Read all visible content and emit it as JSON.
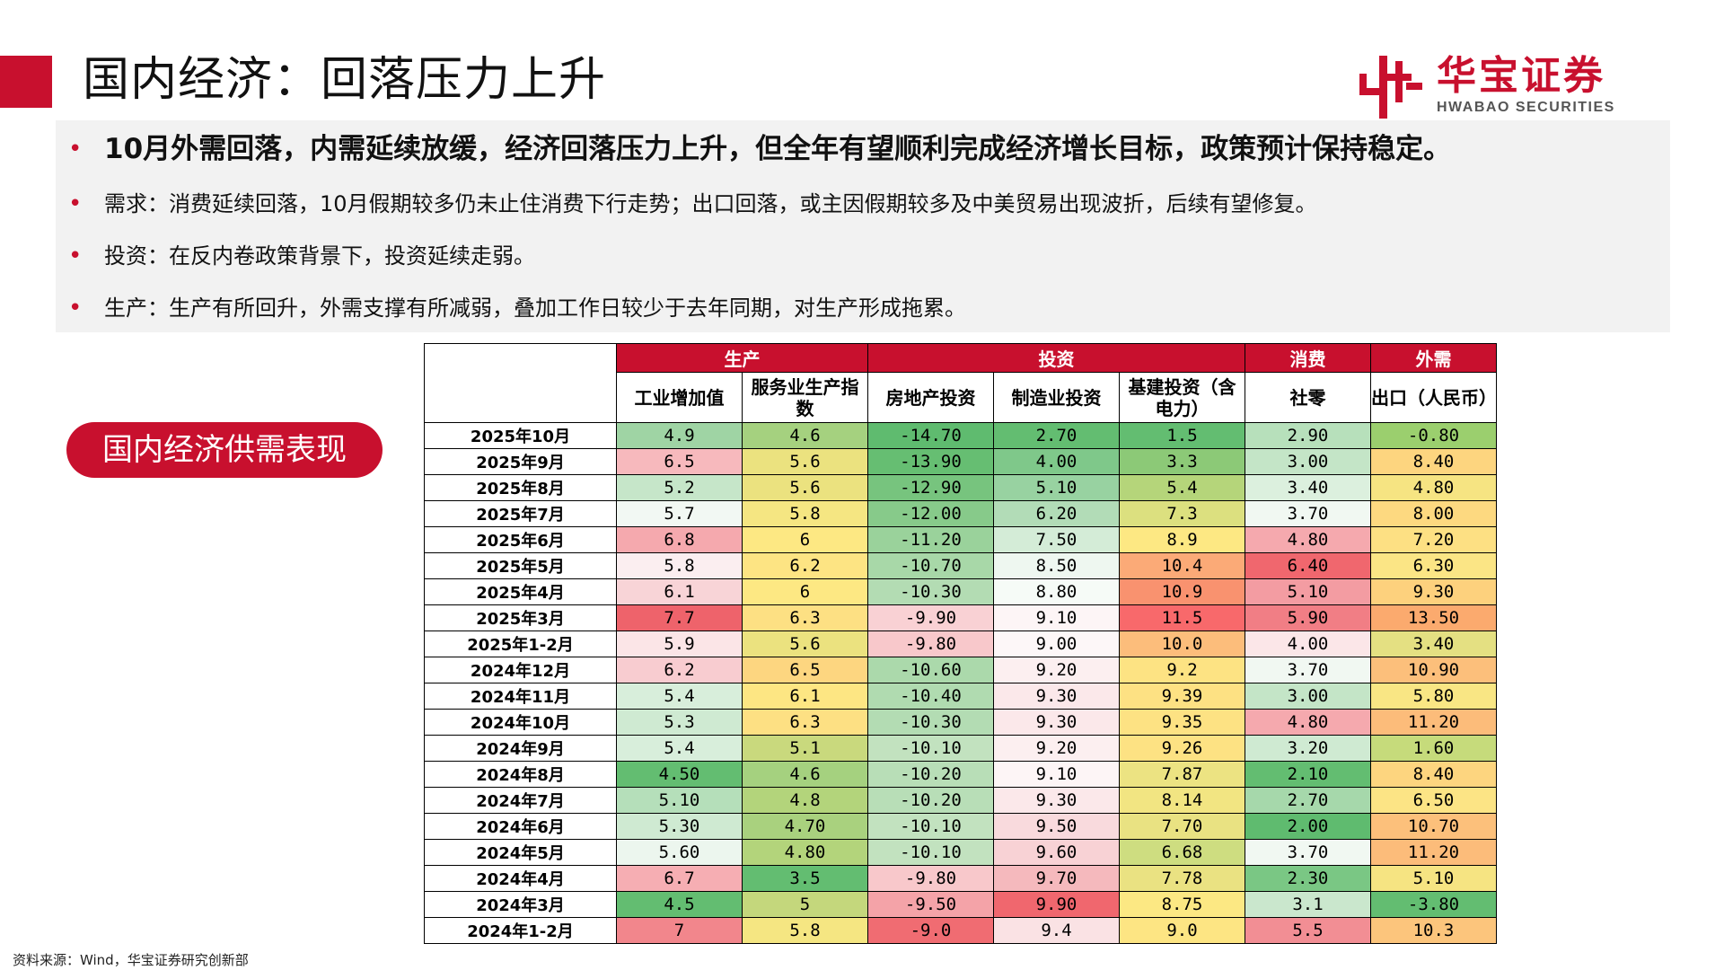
{
  "header": {
    "title": "国内经济：回落压力上升",
    "logo_cn": "华宝证券",
    "logo_en": "HWABAO SECURITIES"
  },
  "summary": {
    "main": "10月外需回落，内需延续放缓，经济回落压力上升，但全年有望顺利完成经济增长目标，政策预计保持稳定。",
    "items": [
      "需求：消费延续回落，10月假期较多仍未止住消费下行走势；出口回落，或主因假期较多及中美贸易出现波折，后续有望修复。",
      "投资：在反内卷政策背景下，投资延续走弱。",
      "生产：生产有所回升，外需支撑有所减弱，叠加工作日较少于去年同期，对生产形成拖累。"
    ]
  },
  "section_label": "国内经济供需表现",
  "table": {
    "groups": [
      {
        "label": "生产",
        "span": 2
      },
      {
        "label": "投资",
        "span": 3
      },
      {
        "label": "消费",
        "span": 1
      },
      {
        "label": "外需",
        "span": 1
      }
    ],
    "columns": [
      "工业增加值",
      "服务业生产指数",
      "房地产投资",
      "制造业投资",
      "基建投资（含电力）",
      "社零",
      "出口（人民币）"
    ],
    "rows": [
      {
        "date": "2025年10月",
        "cells": [
          {
            "v": "4.9",
            "c": "#9fd4a4"
          },
          {
            "v": "4.6",
            "c": "#a5d17f"
          },
          {
            "v": "-14.70",
            "c": "#5fbb6f"
          },
          {
            "v": "2.70",
            "c": "#63bd71"
          },
          {
            "v": "1.5",
            "c": "#63bd71"
          },
          {
            "v": "2.90",
            "c": "#b7e0bb"
          },
          {
            "v": "-0.80",
            "c": "#9bcf6e"
          }
        ]
      },
      {
        "date": "2025年9月",
        "cells": [
          {
            "v": "6.5",
            "c": "#f7b9bd"
          },
          {
            "v": "5.6",
            "c": "#ebe27f"
          },
          {
            "v": "-13.90",
            "c": "#66be72"
          },
          {
            "v": "4.00",
            "c": "#7fc88a"
          },
          {
            "v": "3.3",
            "c": "#8cc977"
          },
          {
            "v": "3.00",
            "c": "#c4e5c7"
          },
          {
            "v": "8.40",
            "c": "#fdd57f"
          }
        ]
      },
      {
        "date": "2025年8月",
        "cells": [
          {
            "v": "5.2",
            "c": "#c6e6c9"
          },
          {
            "v": "5.6",
            "c": "#ebe27f"
          },
          {
            "v": "-12.90",
            "c": "#77c47e"
          },
          {
            "v": "5.10",
            "c": "#98d2a1"
          },
          {
            "v": "5.4",
            "c": "#b5d57a"
          },
          {
            "v": "3.40",
            "c": "#dcf0de"
          },
          {
            "v": "4.80",
            "c": "#f6e482"
          }
        ]
      },
      {
        "date": "2025年7月",
        "cells": [
          {
            "v": "5.7",
            "c": "#f2f8f3"
          },
          {
            "v": "5.8",
            "c": "#f5e682"
          },
          {
            "v": "-12.00",
            "c": "#87ca8a"
          },
          {
            "v": "6.20",
            "c": "#b2dcb7"
          },
          {
            "v": "7.3",
            "c": "#dce07f"
          },
          {
            "v": "3.70",
            "c": "#f1f8f2"
          },
          {
            "v": "8.00",
            "c": "#fdd980"
          }
        ]
      },
      {
        "date": "2025年6月",
        "cells": [
          {
            "v": "6.8",
            "c": "#f5a9ae"
          },
          {
            "v": "6",
            "c": "#fde883"
          },
          {
            "v": "-11.20",
            "c": "#9ad29b"
          },
          {
            "v": "7.50",
            "c": "#d4ecd7"
          },
          {
            "v": "8.9",
            "c": "#fde883"
          },
          {
            "v": "4.80",
            "c": "#f5a9ae"
          },
          {
            "v": "7.20",
            "c": "#fde083"
          }
        ]
      },
      {
        "date": "2025年5月",
        "cells": [
          {
            "v": "5.8",
            "c": "#fbeef0"
          },
          {
            "v": "6.2",
            "c": "#fde483"
          },
          {
            "v": "-10.70",
            "c": "#a8d8a8"
          },
          {
            "v": "8.50",
            "c": "#eef7f0"
          },
          {
            "v": "10.4",
            "c": "#fbaa77"
          },
          {
            "v": "6.40",
            "c": "#f0676e"
          },
          {
            "v": "6.30",
            "c": "#fbe585"
          }
        ]
      },
      {
        "date": "2025年4月",
        "cells": [
          {
            "v": "6.1",
            "c": "#f8d4d7"
          },
          {
            "v": "6",
            "c": "#fde883"
          },
          {
            "v": "-10.30",
            "c": "#b3dcb3"
          },
          {
            "v": "8.80",
            "c": "#f6fbf7"
          },
          {
            "v": "10.9",
            "c": "#f9926f"
          },
          {
            "v": "5.10",
            "c": "#f39ca2"
          },
          {
            "v": "9.30",
            "c": "#fdd17d"
          }
        ]
      },
      {
        "date": "2025年3月",
        "cells": [
          {
            "v": "7.7",
            "c": "#ee636b"
          },
          {
            "v": "6.3",
            "c": "#fde083"
          },
          {
            "v": "-9.90",
            "c": "#f9d1d4"
          },
          {
            "v": "9.10",
            "c": "#fdf5f6"
          },
          {
            "v": "11.5",
            "c": "#f8696b"
          },
          {
            "v": "5.90",
            "c": "#f17e85"
          },
          {
            "v": "13.50",
            "c": "#fbaa6e"
          }
        ]
      },
      {
        "date": "2025年1-2月",
        "cells": [
          {
            "v": "5.9",
            "c": "#fbe5e7"
          },
          {
            "v": "5.6",
            "c": "#ebe27f"
          },
          {
            "v": "-9.80",
            "c": "#f8c8cb"
          },
          {
            "v": "9.00",
            "c": "#fdf7f8"
          },
          {
            "v": "10.0",
            "c": "#fcbd7b"
          },
          {
            "v": "4.00",
            "c": "#fbe6e8"
          },
          {
            "v": "3.40",
            "c": "#e4e082"
          }
        ]
      },
      {
        "date": "2024年12月",
        "cells": [
          {
            "v": "6.2",
            "c": "#f8ccd0"
          },
          {
            "v": "6.5",
            "c": "#fdd680"
          },
          {
            "v": "-10.60",
            "c": "#abd9ab"
          },
          {
            "v": "9.20",
            "c": "#fceff0"
          },
          {
            "v": "9.2",
            "c": "#fde383"
          },
          {
            "v": "3.70",
            "c": "#f1f8f2"
          },
          {
            "v": "10.90",
            "c": "#fcbf7b"
          }
        ]
      },
      {
        "date": "2024年11月",
        "cells": [
          {
            "v": "5.4",
            "c": "#d8eedb"
          },
          {
            "v": "6.1",
            "c": "#fde683"
          },
          {
            "v": "-10.40",
            "c": "#b0dbb0"
          },
          {
            "v": "9.30",
            "c": "#fbe8ea"
          },
          {
            "v": "9.39",
            "c": "#fde183"
          },
          {
            "v": "3.00",
            "c": "#c4e5c7"
          },
          {
            "v": "5.80",
            "c": "#f9e684"
          }
        ]
      },
      {
        "date": "2024年10月",
        "cells": [
          {
            "v": "5.3",
            "c": "#cfeaD2"
          },
          {
            "v": "6.3",
            "c": "#fde083"
          },
          {
            "v": "-10.30",
            "c": "#b3dcb3"
          },
          {
            "v": "9.30",
            "c": "#fbe8ea"
          },
          {
            "v": "9.35",
            "c": "#fde283"
          },
          {
            "v": "4.80",
            "c": "#f5a9ae"
          },
          {
            "v": "11.20",
            "c": "#fcbc7a"
          }
        ]
      },
      {
        "date": "2024年9月",
        "cells": [
          {
            "v": "5.4",
            "c": "#d8eedb"
          },
          {
            "v": "5.1",
            "c": "#c9d97d"
          },
          {
            "v": "-10.10",
            "c": "#c2e2bf"
          },
          {
            "v": "9.20",
            "c": "#fceff0"
          },
          {
            "v": "9.26",
            "c": "#fde283"
          },
          {
            "v": "3.20",
            "c": "#cfead2"
          },
          {
            "v": "1.60",
            "c": "#c6db7b"
          }
        ]
      },
      {
        "date": "2024年8月",
        "cells": [
          {
            "v": "4.50",
            "c": "#63bd71"
          },
          {
            "v": "4.6",
            "c": "#a5d17f"
          },
          {
            "v": "-10.20",
            "c": "#b8deb7"
          },
          {
            "v": "9.10",
            "c": "#fdf5f6"
          },
          {
            "v": "7.87",
            "c": "#ece382"
          },
          {
            "v": "2.10",
            "c": "#63bd71"
          },
          {
            "v": "8.40",
            "c": "#fdd57f"
          }
        ]
      },
      {
        "date": "2024年7月",
        "cells": [
          {
            "v": "5.10",
            "c": "#b5dfba"
          },
          {
            "v": "4.8",
            "c": "#b3d47b"
          },
          {
            "v": "-10.20",
            "c": "#b8deb7"
          },
          {
            "v": "9.30",
            "c": "#fbe8ea"
          },
          {
            "v": "8.14",
            "c": "#f2e582"
          },
          {
            "v": "2.70",
            "c": "#a6d8ab"
          },
          {
            "v": "6.50",
            "c": "#fce485"
          }
        ]
      },
      {
        "date": "2024年6月",
        "cells": [
          {
            "v": "5.30",
            "c": "#cfeaD2"
          },
          {
            "v": "4.70",
            "c": "#a9d17e"
          },
          {
            "v": "-10.10",
            "c": "#c2e2bf"
          },
          {
            "v": "9.50",
            "c": "#f9dadd"
          },
          {
            "v": "7.70",
            "c": "#e9e282"
          },
          {
            "v": "2.00",
            "c": "#5fbb6f"
          },
          {
            "v": "10.70",
            "c": "#fcc07b"
          }
        ]
      },
      {
        "date": "2024年5月",
        "cells": [
          {
            "v": "5.60",
            "c": "#ecf6ee"
          },
          {
            "v": "4.80",
            "c": "#b3d47b"
          },
          {
            "v": "-10.10",
            "c": "#c2e2bf"
          },
          {
            "v": "9.60",
            "c": "#f8d2d5"
          },
          {
            "v": "6.68",
            "c": "#cedd80"
          },
          {
            "v": "3.70",
            "c": "#f1f8f2"
          },
          {
            "v": "11.20",
            "c": "#fcbc7a"
          }
        ]
      },
      {
        "date": "2024年4月",
        "cells": [
          {
            "v": "6.7",
            "c": "#f6aeb3"
          },
          {
            "v": "3.5",
            "c": "#63bd71"
          },
          {
            "v": "-9.80",
            "c": "#f8c8cb"
          },
          {
            "v": "9.70",
            "c": "#f5b9bd"
          },
          {
            "v": "7.78",
            "c": "#eae282"
          },
          {
            "v": "2.30",
            "c": "#7ac784"
          },
          {
            "v": "5.10",
            "c": "#f6e482"
          }
        ]
      },
      {
        "date": "2024年3月",
        "cells": [
          {
            "v": "4.5",
            "c": "#63bd71"
          },
          {
            "v": "5",
            "c": "#c4d77c"
          },
          {
            "v": "-9.50",
            "c": "#f4a3a8"
          },
          {
            "v": "9.90",
            "c": "#f0676e"
          },
          {
            "v": "8.75",
            "c": "#fce883"
          },
          {
            "v": "3.1",
            "c": "#cae7cd"
          },
          {
            "v": "-3.80",
            "c": "#63bd71"
          }
        ]
      },
      {
        "date": "2024年1-2月",
        "cells": [
          {
            "v": "7",
            "c": "#f2868c"
          },
          {
            "v": "5.8",
            "c": "#f5e682"
          },
          {
            "v": "-9.0",
            "c": "#f06c72"
          },
          {
            "v": "9.4",
            "c": "#fae2e4"
          },
          {
            "v": "9.0",
            "c": "#fde583"
          },
          {
            "v": "5.5",
            "c": "#f28e94"
          },
          {
            "v": "10.3",
            "c": "#fcc57c"
          }
        ]
      }
    ]
  },
  "source": "资料来源：Wind，华宝证券研究创新部"
}
